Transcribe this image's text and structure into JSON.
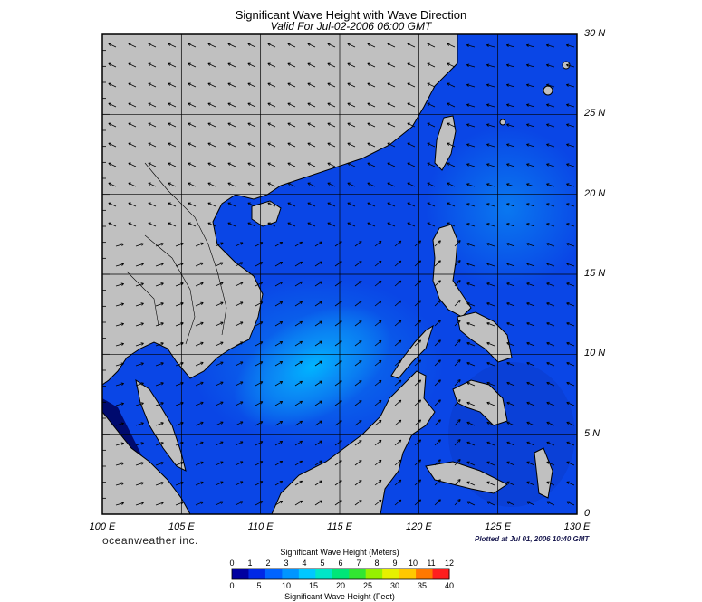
{
  "header": {
    "title": "Significant Wave Height with Wave Direction",
    "subtitle": "Valid For Jul-02-2006 06:00 GMT"
  },
  "axes": {
    "lat_labels": [
      "30 N",
      "25 N",
      "20 N",
      "15 N",
      "10 N",
      "5 N",
      "0"
    ],
    "lat_values": [
      30,
      25,
      20,
      15,
      10,
      5,
      0
    ],
    "lon_labels": [
      "100 E",
      "105 E",
      "110 E",
      "115 E",
      "120 E",
      "125 E",
      "130 E"
    ],
    "lon_values": [
      100,
      105,
      110,
      115,
      120,
      125,
      130
    ],
    "lat_range": [
      0,
      30
    ],
    "lon_range": [
      100,
      130
    ],
    "grid": true
  },
  "footer": {
    "brand": "oceanweather inc.",
    "plotted": "Plotted at Jul 01, 2006 10:40 GMT"
  },
  "legend": {
    "meters_title": "Significant Wave Height (Meters)",
    "meters_ticks": [
      "0",
      "1",
      "2",
      "3",
      "4",
      "5",
      "6",
      "7",
      "8",
      "9",
      "10",
      "11",
      "12"
    ],
    "feet_title": "Significant Wave Height (Feet)",
    "feet_ticks": [
      "0",
      "5",
      "10",
      "15",
      "20",
      "25",
      "30",
      "35",
      "40"
    ],
    "colors": [
      "#0000a0",
      "#0028e6",
      "#0064ff",
      "#0096ff",
      "#00c8ff",
      "#00e6c8",
      "#00e678",
      "#32e632",
      "#96f000",
      "#e6f000",
      "#ffc800",
      "#ff7800",
      "#ff1e1e"
    ]
  },
  "map": {
    "land_color": "#c0c0c0",
    "wave_direction": "southwest monsoon, arrows pointing northeast"
  }
}
